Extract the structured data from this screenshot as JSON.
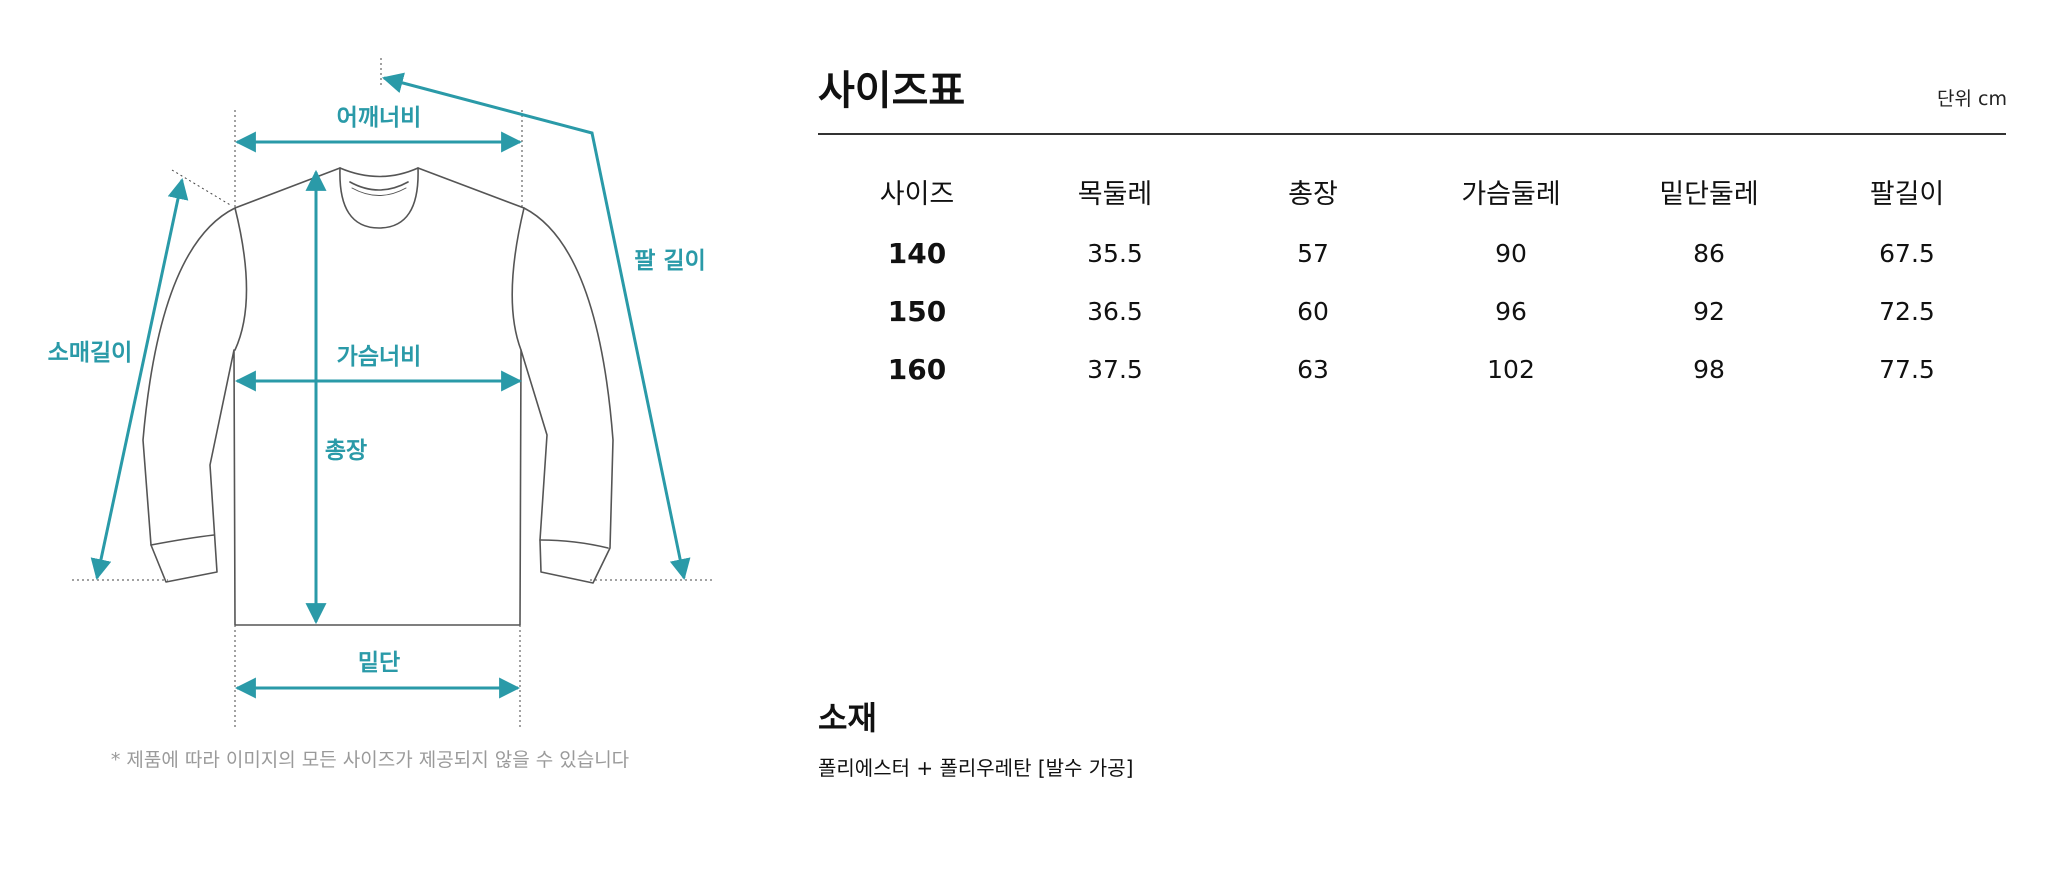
{
  "diagram": {
    "labels": {
      "shoulder": "어깨너비",
      "arm": "팔 길이",
      "sleeve": "소매길이",
      "chest": "가슴너비",
      "length": "총장",
      "hem": "밑단"
    },
    "accent_color": "#2a9aa8",
    "note": "* 제품에 따라 이미지의 모든 사이즈가 제공되지 않을 수 있습니다"
  },
  "size_chart": {
    "title": "사이즈표",
    "unit": "단위 cm",
    "columns": [
      "사이즈",
      "목둘레",
      "총장",
      "가슴둘레",
      "밑단둘레",
      "팔길이"
    ],
    "rows": [
      [
        "140",
        "35.5",
        "57",
        "90",
        "86",
        "67.5"
      ],
      [
        "150",
        "36.5",
        "60",
        "96",
        "92",
        "72.5"
      ],
      [
        "160",
        "37.5",
        "63",
        "102",
        "98",
        "77.5"
      ]
    ]
  },
  "material": {
    "title": "소재",
    "value": "폴리에스터 + 폴리우레탄 [발수 가공]"
  }
}
